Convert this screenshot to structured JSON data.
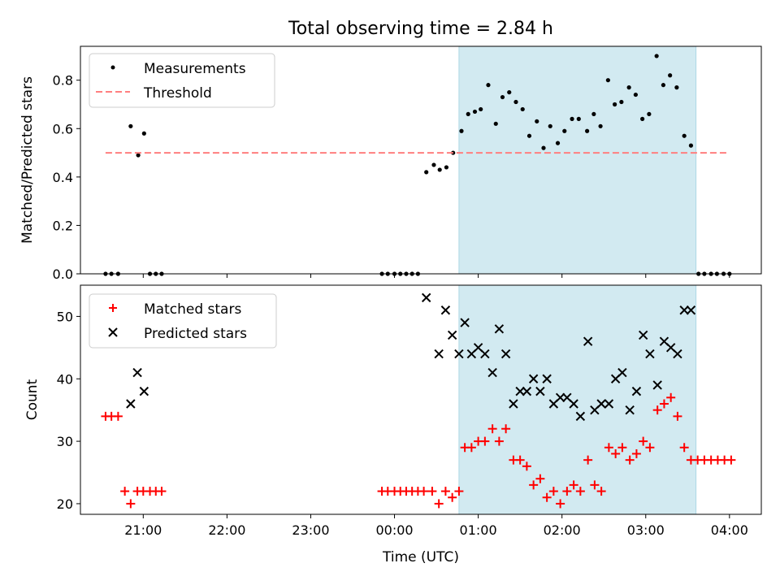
{
  "chart_data": [
    {
      "type": "scatter",
      "title": "Total observing time = 2.84 h",
      "xlabel": "",
      "ylabel": "Matched/Predicted stars",
      "ylim": [
        0,
        0.94
      ],
      "yticks": [
        "0.0",
        "0.2",
        "0.4",
        "0.6",
        "0.8"
      ],
      "ytick_values": [
        0,
        0.2,
        0.4,
        0.6,
        0.8
      ],
      "xlim_hours": [
        -3.75,
        4.38
      ],
      "xtick_labels": [],
      "shaded_interval_hours": [
        0.77,
        3.6
      ],
      "shaded_color": "#add8e6",
      "legend_position": "upper left",
      "series": [
        {
          "name": "Measurements",
          "kind": "dot",
          "color": "#000000",
          "points": [
            [
              -3.45,
              0
            ],
            [
              -3.38,
              0
            ],
            [
              -3.3,
              0
            ],
            [
              -3.15,
              0.61
            ],
            [
              -3.06,
              0.49
            ],
            [
              -2.99,
              0.58
            ],
            [
              -2.92,
              0
            ],
            [
              -2.85,
              0
            ],
            [
              -2.78,
              0
            ],
            [
              -0.15,
              0
            ],
            [
              -0.08,
              0
            ],
            [
              0,
              0
            ],
            [
              0.07,
              0
            ],
            [
              0.14,
              0
            ],
            [
              0.21,
              0
            ],
            [
              0.28,
              0
            ],
            [
              0.38,
              0.42
            ],
            [
              0.47,
              0.45
            ],
            [
              0.54,
              0.43
            ],
            [
              0.62,
              0.44
            ],
            [
              0.7,
              0.5
            ],
            [
              0.8,
              0.59
            ],
            [
              0.88,
              0.66
            ],
            [
              0.96,
              0.67
            ],
            [
              1.03,
              0.68
            ],
            [
              1.12,
              0.78
            ],
            [
              1.21,
              0.62
            ],
            [
              1.29,
              0.73
            ],
            [
              1.37,
              0.75
            ],
            [
              1.45,
              0.71
            ],
            [
              1.53,
              0.68
            ],
            [
              1.61,
              0.57
            ],
            [
              1.7,
              0.63
            ],
            [
              1.78,
              0.52
            ],
            [
              1.86,
              0.61
            ],
            [
              1.95,
              0.54
            ],
            [
              2.03,
              0.59
            ],
            [
              2.12,
              0.64
            ],
            [
              2.2,
              0.64
            ],
            [
              2.3,
              0.59
            ],
            [
              2.38,
              0.66
            ],
            [
              2.46,
              0.61
            ],
            [
              2.55,
              0.8
            ],
            [
              2.63,
              0.7
            ],
            [
              2.71,
              0.71
            ],
            [
              2.8,
              0.77
            ],
            [
              2.88,
              0.74
            ],
            [
              2.96,
              0.64
            ],
            [
              3.04,
              0.66
            ],
            [
              3.13,
              0.9
            ],
            [
              3.21,
              0.78
            ],
            [
              3.29,
              0.82
            ],
            [
              3.37,
              0.77
            ],
            [
              3.46,
              0.57
            ],
            [
              3.54,
              0.53
            ],
            [
              3.63,
              0
            ],
            [
              3.7,
              0
            ],
            [
              3.78,
              0
            ],
            [
              3.85,
              0
            ],
            [
              3.93,
              0
            ],
            [
              4.0,
              0
            ]
          ]
        },
        {
          "name": "Threshold",
          "kind": "dashed-line",
          "color": "#ff7f7f",
          "points": [
            [
              -3.45,
              0.5
            ],
            [
              4.0,
              0.5
            ]
          ]
        }
      ]
    },
    {
      "type": "scatter",
      "title": "",
      "xlabel": "Time (UTC)",
      "ylabel": "Count",
      "ylim": [
        18.3,
        55
      ],
      "yticks": [
        "20",
        "30",
        "40",
        "50"
      ],
      "ytick_values": [
        20,
        30,
        40,
        50
      ],
      "xlim_hours": [
        -3.75,
        4.38
      ],
      "xtick_labels": [
        "21:00",
        "22:00",
        "23:00",
        "00:00",
        "01:00",
        "02:00",
        "03:00",
        "04:00"
      ],
      "xtick_values": [
        -3,
        -2,
        -1,
        0,
        1,
        2,
        3,
        4
      ],
      "shaded_interval_hours": [
        0.77,
        3.6
      ],
      "shaded_color": "#add8e6",
      "legend_position": "upper left",
      "series": [
        {
          "name": "Matched stars",
          "kind": "plus",
          "color": "#ff0000",
          "points": [
            [
              -3.45,
              34
            ],
            [
              -3.38,
              34
            ],
            [
              -3.3,
              34
            ],
            [
              -3.22,
              22
            ],
            [
              -3.15,
              20
            ],
            [
              -3.07,
              22
            ],
            [
              -3.0,
              22
            ],
            [
              -2.92,
              22
            ],
            [
              -2.85,
              22
            ],
            [
              -2.78,
              22
            ],
            [
              -0.15,
              22
            ],
            [
              -0.08,
              22
            ],
            [
              0,
              22
            ],
            [
              0.07,
              22
            ],
            [
              0.14,
              22
            ],
            [
              0.21,
              22
            ],
            [
              0.28,
              22
            ],
            [
              0.35,
              22
            ],
            [
              0.45,
              22
            ],
            [
              0.53,
              20
            ],
            [
              0.61,
              22
            ],
            [
              0.69,
              21
            ],
            [
              0.77,
              22
            ],
            [
              0.84,
              29
            ],
            [
              0.92,
              29
            ],
            [
              1.0,
              30
            ],
            [
              1.08,
              30
            ],
            [
              1.17,
              32
            ],
            [
              1.25,
              30
            ],
            [
              1.33,
              32
            ],
            [
              1.42,
              27
            ],
            [
              1.5,
              27
            ],
            [
              1.58,
              26
            ],
            [
              1.66,
              23
            ],
            [
              1.74,
              24
            ],
            [
              1.82,
              21
            ],
            [
              1.9,
              22
            ],
            [
              1.98,
              20
            ],
            [
              2.06,
              22
            ],
            [
              2.14,
              23
            ],
            [
              2.22,
              22
            ],
            [
              2.31,
              27
            ],
            [
              2.39,
              23
            ],
            [
              2.47,
              22
            ],
            [
              2.56,
              29
            ],
            [
              2.64,
              28
            ],
            [
              2.72,
              29
            ],
            [
              2.81,
              27
            ],
            [
              2.89,
              28
            ],
            [
              2.97,
              30
            ],
            [
              3.05,
              29
            ],
            [
              3.14,
              35
            ],
            [
              3.22,
              36
            ],
            [
              3.3,
              37
            ],
            [
              3.38,
              34
            ],
            [
              3.46,
              29
            ],
            [
              3.54,
              27
            ],
            [
              3.62,
              27
            ],
            [
              3.7,
              27
            ],
            [
              3.78,
              27
            ],
            [
              3.86,
              27
            ],
            [
              3.94,
              27
            ],
            [
              4.02,
              27
            ]
          ]
        },
        {
          "name": "Predicted stars",
          "kind": "x",
          "color": "#000000",
          "points": [
            [
              -3.15,
              36
            ],
            [
              -3.07,
              41
            ],
            [
              -2.99,
              38
            ],
            [
              0.38,
              53
            ],
            [
              0.53,
              44
            ],
            [
              0.61,
              51
            ],
            [
              0.69,
              47
            ],
            [
              0.77,
              44
            ],
            [
              0.84,
              49
            ],
            [
              0.92,
              44
            ],
            [
              1.0,
              45
            ],
            [
              1.08,
              44
            ],
            [
              1.17,
              41
            ],
            [
              1.25,
              48
            ],
            [
              1.33,
              44
            ],
            [
              1.42,
              36
            ],
            [
              1.5,
              38
            ],
            [
              1.58,
              38
            ],
            [
              1.66,
              40
            ],
            [
              1.74,
              38
            ],
            [
              1.82,
              40
            ],
            [
              1.9,
              36
            ],
            [
              1.98,
              37
            ],
            [
              2.06,
              37
            ],
            [
              2.14,
              36
            ],
            [
              2.22,
              34
            ],
            [
              2.31,
              46
            ],
            [
              2.39,
              35
            ],
            [
              2.47,
              36
            ],
            [
              2.56,
              36
            ],
            [
              2.64,
              40
            ],
            [
              2.72,
              41
            ],
            [
              2.81,
              35
            ],
            [
              2.89,
              38
            ],
            [
              2.97,
              47
            ],
            [
              3.05,
              44
            ],
            [
              3.14,
              39
            ],
            [
              3.22,
              46
            ],
            [
              3.3,
              45
            ],
            [
              3.38,
              44
            ],
            [
              3.46,
              51
            ],
            [
              3.54,
              51
            ]
          ]
        }
      ]
    }
  ]
}
